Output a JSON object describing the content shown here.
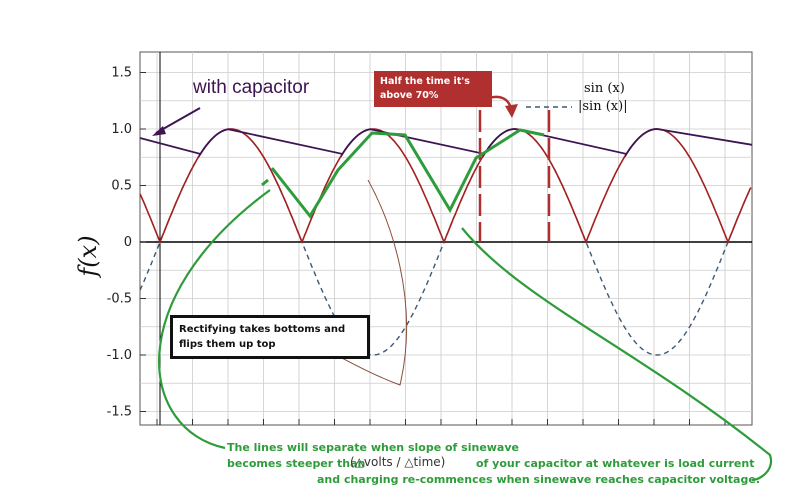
{
  "chart_data": {
    "type": "line",
    "ylabel": "f(x)",
    "ylim": [
      -1.6,
      1.6
    ],
    "y_ticks": [
      "1.5",
      "1.0",
      "0.5",
      "0",
      "-0.5",
      "-1.0",
      "-1.5"
    ],
    "series": [
      {
        "name": "sin (x)",
        "style": "dashed",
        "color": "#3b5874"
      },
      {
        "name": "|sin (x)|",
        "style": "solid",
        "color": "#a32020"
      },
      {
        "name": "",
        "style": "solid",
        "color": "#3d1552"
      }
    ],
    "x_zeros": [
      0,
      1,
      2,
      3,
      4
    ],
    "annotations": {
      "with_capacitor": "with capacitor",
      "half_time": "Half the time it's above 70%",
      "rectifying": "Rectifying takes bottoms and flips them up top",
      "note_line1": "The lines will separate when slope of sinewave",
      "note_line2": "becomes steeper than",
      "note_fraction": "(△volts / △time)",
      "note_line3": "of your capacitor at whatever is load current",
      "note_line4": "and charging re-commences when sinewave reaches capacitor voltage."
    }
  },
  "colors": {
    "grid": "#cccccc",
    "abs_sine": "#a32020",
    "sine": "#3b5874",
    "capacitor": "#3d1552",
    "annotation_green": "#2e9c3a",
    "annotation_red": "#b03030"
  }
}
